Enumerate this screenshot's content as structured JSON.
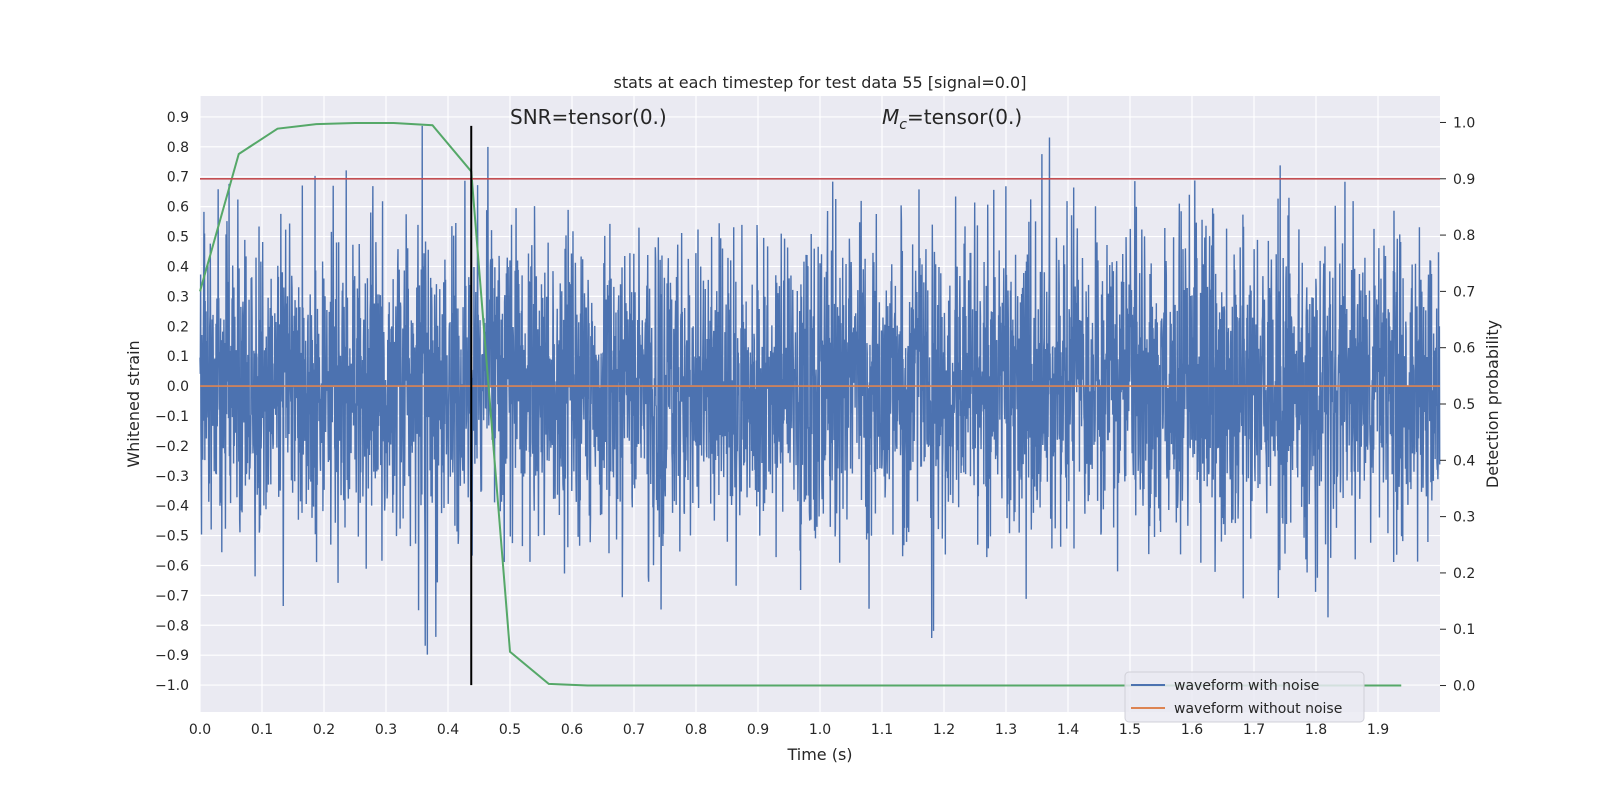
{
  "chart_data": {
    "type": "line",
    "title": "stats at each timestep for test data 55 [signal=0.0]",
    "xlabel": "Time (s)",
    "ylabel": "Whitened strain",
    "y2label": "Detection probability",
    "xlim": [
      0.0,
      2.0
    ],
    "ylim": [
      -1.09,
      0.97
    ],
    "y2lim": [
      -0.047,
      1.047
    ],
    "x_ticks": [
      "0.0",
      "0.1",
      "0.2",
      "0.3",
      "0.4",
      "0.5",
      "0.6",
      "0.7",
      "0.8",
      "0.9",
      "1.0",
      "1.1",
      "1.2",
      "1.3",
      "1.4",
      "1.5",
      "1.6",
      "1.7",
      "1.8",
      "1.9"
    ],
    "y_ticks": [
      "0.9",
      "0.8",
      "0.7",
      "0.6",
      "0.5",
      "0.4",
      "0.3",
      "0.2",
      "0.1",
      "0.0",
      "−0.1",
      "−0.2",
      "−0.3",
      "−0.4",
      "−0.5",
      "−0.6",
      "−0.7",
      "−0.8",
      "−0.9",
      "−1.0"
    ],
    "y2_ticks": [
      "1.0",
      "0.9",
      "0.8",
      "0.7",
      "0.6",
      "0.5",
      "0.4",
      "0.3",
      "0.2",
      "0.1",
      "0.0"
    ],
    "grid": true,
    "legend_position": "lower-right",
    "annotations": {
      "snr_prefix": "SNR=tensor(0.)",
      "mc_symbol": "M",
      "mc_subscript": "c",
      "mc_suffix": "=tensor(0.)"
    },
    "series": [
      {
        "name": "waveform with noise",
        "color": "#4c72b0",
        "axis": "left",
        "note_values": "dense noise, ~4096 samples, mostly within ±0.5 with spikes near ±0.9",
        "sample_count": 4096,
        "amplitude_std": 0.25,
        "y_min": -1.0,
        "y_max": 0.87
      },
      {
        "name": "waveform without noise",
        "color": "#dd8452",
        "axis": "left",
        "x": [
          0.0,
          2.0
        ],
        "values": [
          0.0,
          0.0
        ]
      },
      {
        "color": "#55a868",
        "axis": "right",
        "x": [
          0.0,
          0.0625,
          0.125,
          0.1875,
          0.25,
          0.3125,
          0.375,
          0.4375,
          0.5,
          0.5625,
          0.625,
          0.6875,
          0.75,
          0.8125,
          0.875,
          0.9375,
          1.0,
          1.0625,
          1.125,
          1.1875,
          1.25,
          1.3125,
          1.375,
          1.4375,
          1.5,
          1.5625,
          1.625,
          1.6875,
          1.75,
          1.8125,
          1.875,
          1.9375
        ],
        "values": [
          0.7,
          0.944,
          0.989,
          0.997,
          0.999,
          0.999,
          0.995,
          0.913,
          0.06,
          0.003,
          0.0,
          0.0,
          0.0,
          0.0,
          0.0,
          0.0,
          0.0,
          0.0,
          0.0,
          0.0,
          0.0,
          0.0,
          0.0,
          0.0,
          0.0,
          0.0,
          0.0,
          0.0,
          0.0,
          0.0,
          0.0,
          0.0
        ]
      },
      {
        "color": "#c44e52",
        "axis": "right",
        "x": [
          0.0,
          2.0
        ],
        "values": [
          0.9,
          0.9
        ]
      },
      {
        "type": "vline",
        "color": "#000000",
        "x": 0.4375,
        "ymin": -1.0,
        "ymax": 0.87
      }
    ]
  }
}
